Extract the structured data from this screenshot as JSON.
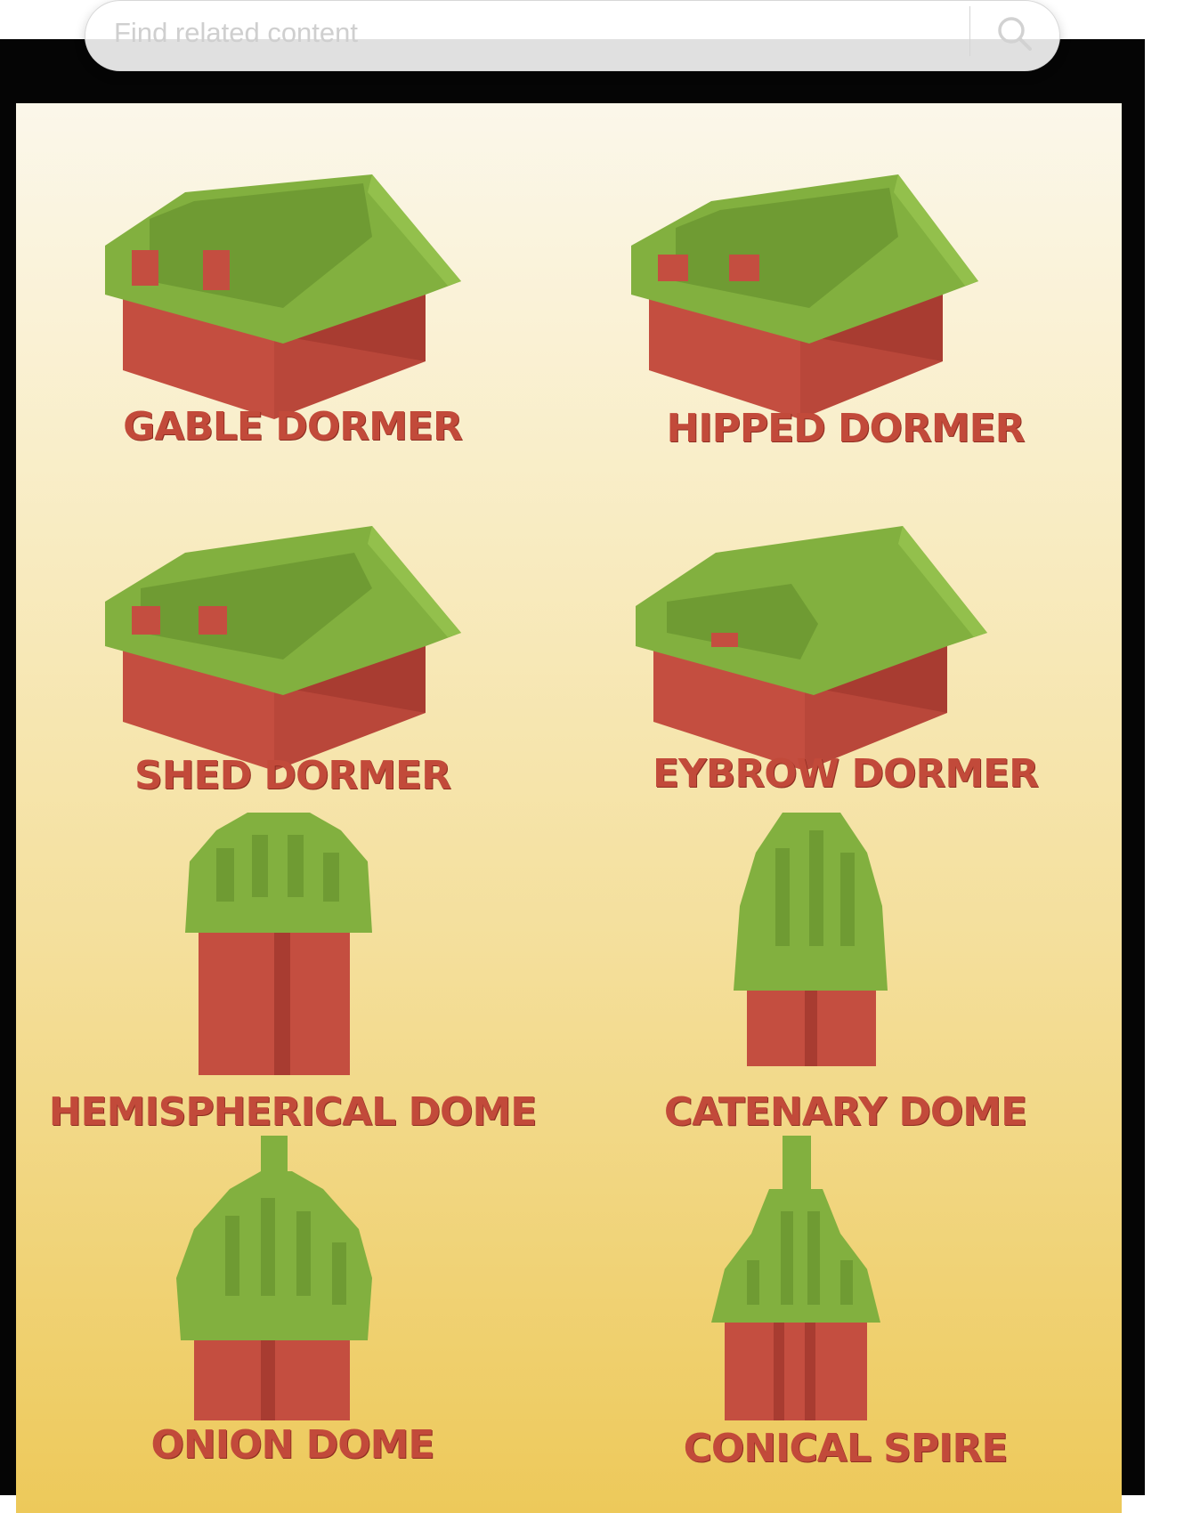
{
  "search": {
    "placeholder": "Find related content",
    "icon": "search-icon"
  },
  "poster": {
    "colors": {
      "roof_green": "#7fae3b",
      "wall_red": "#c04b3d",
      "caption_red": "#c24a3a",
      "background_top": "#fbf7ea",
      "background_bottom": "#edc95a"
    },
    "items": [
      {
        "label": "GABLE DORMER",
        "kind": "dormer"
      },
      {
        "label": "HIPPED DORMER",
        "kind": "dormer"
      },
      {
        "label": "SHED DORMER",
        "kind": "dormer"
      },
      {
        "label": "EYBROW DORMER",
        "kind": "dormer"
      },
      {
        "label": "HEMISPHERICAL DOME",
        "kind": "dome"
      },
      {
        "label": "CATENARY DOME",
        "kind": "dome"
      },
      {
        "label": "ONION DOME",
        "kind": "dome"
      },
      {
        "label": "CONICAL SPIRE",
        "kind": "spire"
      }
    ]
  }
}
